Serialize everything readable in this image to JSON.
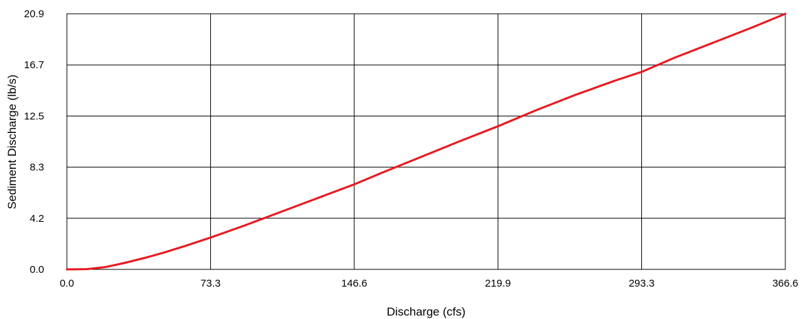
{
  "chart_data": {
    "type": "line",
    "title": "",
    "xlabel": "Discharge (cfs)",
    "ylabel": "Sediment Discharge (lb/s)",
    "xlim": [
      0.0,
      366.6
    ],
    "ylim": [
      0.0,
      20.9
    ],
    "x_ticks": [
      "0.0",
      "73.3",
      "146.6",
      "219.9",
      "293.3",
      "366.6"
    ],
    "y_ticks": [
      "0.0",
      "4.2",
      "8.3",
      "12.5",
      "16.7",
      "20.9"
    ],
    "grid": true,
    "legend": "none",
    "series": [
      {
        "color": "#e8191f",
        "x": [
          0,
          10,
          20,
          30,
          40,
          50,
          60,
          73.3,
          90,
          100,
          120,
          146.6,
          160,
          180,
          200,
          219.9,
          240,
          260,
          280,
          293.3,
          310,
          330,
          350,
          366.6
        ],
        "y": [
          0.0,
          0.02,
          0.2,
          0.55,
          0.95,
          1.4,
          1.9,
          2.6,
          3.55,
          4.15,
          5.35,
          6.95,
          7.85,
          9.15,
          10.45,
          11.7,
          13.05,
          14.3,
          15.45,
          16.15,
          17.3,
          18.55,
          19.8,
          20.9
        ]
      }
    ]
  }
}
